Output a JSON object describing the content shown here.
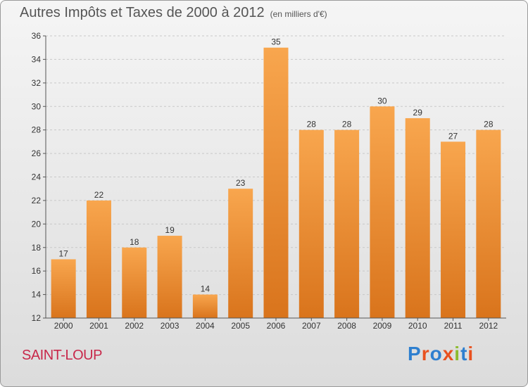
{
  "header": {
    "title": "Autres Impôts et Taxes de 2000 à 2012",
    "subtitle": "(en milliers d'€)"
  },
  "footer": {
    "place": "SAINT-LOUP",
    "brand": "Proxiti"
  },
  "colors": {
    "bar_light": "#f8a64e",
    "bar_dark": "#d9741c",
    "place": "#c8284a"
  },
  "chart_data": {
    "type": "bar",
    "title": "Autres Impôts et Taxes de 2000 à 2012",
    "subtitle": "(en milliers d'€)",
    "categories": [
      "2000",
      "2001",
      "2002",
      "2003",
      "2004",
      "2005",
      "2006",
      "2007",
      "2008",
      "2009",
      "2010",
      "2011",
      "2012"
    ],
    "values": [
      17,
      22,
      18,
      19,
      14,
      23,
      35,
      28,
      28,
      30,
      29,
      27,
      28
    ],
    "ylim": [
      12,
      36
    ],
    "yticks": [
      12,
      14,
      16,
      18,
      20,
      22,
      24,
      26,
      28,
      30,
      32,
      34,
      36
    ],
    "grid": "horizontal dashed",
    "xlabel": "",
    "ylabel": ""
  }
}
